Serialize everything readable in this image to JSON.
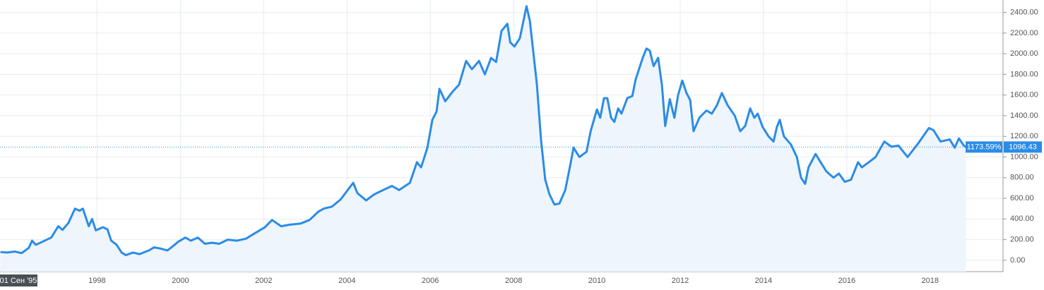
{
  "chart_data": {
    "type": "line",
    "color": "#2b8ce6",
    "grid": true,
    "x": [
      1995.68,
      1995.85,
      1996.02,
      1996.19,
      1996.36,
      1996.44,
      1996.53,
      1996.69,
      1996.9,
      1997.07,
      1997.17,
      1997.31,
      1997.47,
      1997.58,
      1997.66,
      1997.8,
      1997.88,
      1997.97,
      1998.14,
      1998.25,
      1998.34,
      1998.47,
      1998.59,
      1998.69,
      1998.86,
      1999.02,
      1999.24,
      1999.37,
      1999.51,
      1999.69,
      1999.83,
      1999.95,
      2000.12,
      2000.25,
      2000.42,
      2000.59,
      2000.76,
      2000.93,
      2001.14,
      2001.36,
      2001.58,
      2001.78,
      2002.03,
      2002.2,
      2002.42,
      2002.63,
      2002.88,
      2003.1,
      2003.31,
      2003.44,
      2003.64,
      2003.85,
      2003.98,
      2004.15,
      2004.25,
      2004.46,
      2004.66,
      2004.92,
      2005.08,
      2005.25,
      2005.51,
      2005.68,
      2005.78,
      2005.93,
      2006.05,
      2006.15,
      2006.22,
      2006.36,
      2006.53,
      2006.69,
      2006.86,
      2007.0,
      2007.17,
      2007.31,
      2007.46,
      2007.58,
      2007.71,
      2007.85,
      2007.92,
      2008.02,
      2008.15,
      2008.31,
      2008.39,
      2008.56,
      2008.66,
      2008.76,
      2008.86,
      2008.98,
      2009.1,
      2009.24,
      2009.34,
      2009.44,
      2009.58,
      2009.75,
      2009.85,
      2010.0,
      2010.08,
      2010.17,
      2010.25,
      2010.34,
      2010.42,
      2010.51,
      2010.59,
      2010.73,
      2010.85,
      2010.93,
      2011.1,
      2011.19,
      2011.27,
      2011.36,
      2011.47,
      2011.56,
      2011.64,
      2011.75,
      2011.86,
      2011.95,
      2012.05,
      2012.15,
      2012.24,
      2012.32,
      2012.46,
      2012.63,
      2012.76,
      2012.88,
      2013.0,
      2013.14,
      2013.31,
      2013.44,
      2013.56,
      2013.68,
      2013.78,
      2013.86,
      2013.98,
      2014.12,
      2014.24,
      2014.32,
      2014.39,
      2014.49,
      2014.66,
      2014.8,
      2014.9,
      2015.0,
      2015.08,
      2015.25,
      2015.37,
      2015.51,
      2015.68,
      2015.81,
      2015.95,
      2016.1,
      2016.27,
      2016.36,
      2016.53,
      2016.69,
      2016.9,
      2017.07,
      2017.24,
      2017.46,
      2017.71,
      2017.97,
      2018.08,
      2018.25,
      2018.47,
      2018.59,
      2018.69,
      2018.81,
      2018.86
    ],
    "values": [
      80,
      75,
      85,
      70,
      120,
      190,
      150,
      180,
      220,
      330,
      295,
      360,
      500,
      480,
      500,
      330,
      400,
      290,
      320,
      300,
      190,
      150,
      75,
      50,
      75,
      60,
      95,
      125,
      115,
      95,
      140,
      180,
      220,
      190,
      220,
      160,
      170,
      160,
      200,
      190,
      210,
      260,
      320,
      390,
      330,
      345,
      355,
      390,
      470,
      500,
      520,
      590,
      660,
      750,
      650,
      580,
      640,
      690,
      720,
      680,
      750,
      950,
      900,
      1090,
      1360,
      1440,
      1660,
      1540,
      1630,
      1700,
      1930,
      1850,
      1930,
      1800,
      1960,
      1920,
      2220,
      2290,
      2110,
      2070,
      2150,
      2460,
      2320,
      1700,
      1160,
      780,
      640,
      540,
      550,
      680,
      880,
      1090,
      1000,
      1050,
      1250,
      1460,
      1380,
      1570,
      1570,
      1380,
      1340,
      1470,
      1420,
      1570,
      1590,
      1750,
      1960,
      2050,
      2030,
      1880,
      1960,
      1700,
      1300,
      1560,
      1380,
      1600,
      1740,
      1620,
      1550,
      1250,
      1380,
      1450,
      1420,
      1500,
      1620,
      1500,
      1400,
      1250,
      1300,
      1470,
      1380,
      1420,
      1290,
      1200,
      1150,
      1290,
      1360,
      1200,
      1120,
      1000,
      800,
      740,
      900,
      1030,
      950,
      860,
      800,
      840,
      760,
      780,
      950,
      900,
      950,
      1000,
      1150,
      1100,
      1110,
      1000,
      1130,
      1280,
      1260,
      1150,
      1170,
      1090,
      1180,
      1110,
      1096
    ],
    "xlim": [
      1995.67,
      2019.75
    ],
    "xticks": [
      1998,
      2000,
      2002,
      2004,
      2006,
      2008,
      2010,
      2012,
      2014,
      2016,
      2018
    ],
    "ylim": [
      -110,
      2520
    ],
    "yticks": [
      {
        "value": 0,
        "label": "0.00"
      },
      {
        "value": 200,
        "label": "200.00"
      },
      {
        "value": 400,
        "label": "400.00"
      },
      {
        "value": 600,
        "label": "600.00"
      },
      {
        "value": 800,
        "label": "800.00"
      },
      {
        "value": 1000,
        "label": "1000.00"
      },
      {
        "value": 1200,
        "label": "1200.00"
      },
      {
        "value": 1400,
        "label": "1400.00"
      },
      {
        "value": 1600,
        "label": "1600.00"
      },
      {
        "value": 1800,
        "label": "1800.00"
      },
      {
        "value": 2000,
        "label": "2000.00"
      },
      {
        "value": 2200,
        "label": "2200.00"
      },
      {
        "value": 2400,
        "label": "2400.00"
      }
    ],
    "current_value": 1096.43,
    "change_label": "1173.59%",
    "cursor_label": "01 Сен '95"
  }
}
